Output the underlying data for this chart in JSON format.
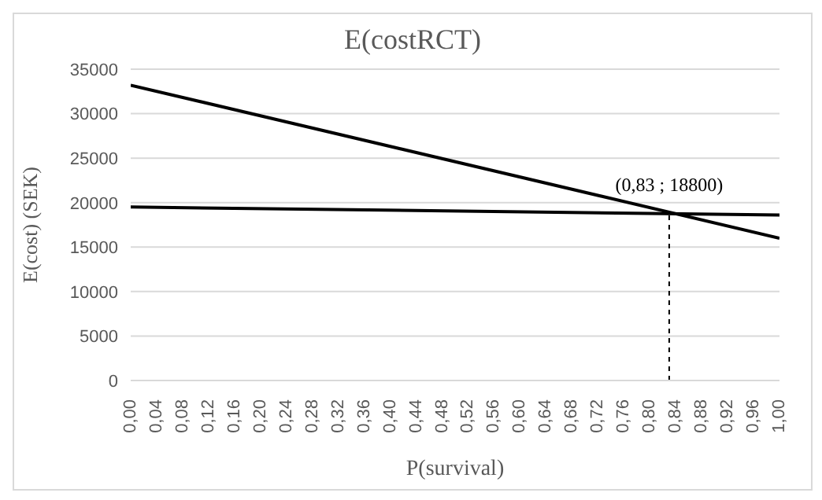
{
  "chart_data": {
    "type": "line",
    "title": "E(costRCT)",
    "xlabel": "P(survival)",
    "ylabel": "E(cost) (SEK)",
    "series": [
      {
        "color": "#000000",
        "x": [
          0,
          1
        ],
        "values": [
          33200,
          16000
        ]
      },
      {
        "color": "#000000",
        "x": [
          0,
          1
        ],
        "values": [
          19500,
          18600
        ]
      },
      {
        "color": "#000000",
        "x": [
          0.83,
          0.83
        ],
        "values": [
          0,
          18800
        ],
        "line_style": "dashed"
      }
    ],
    "xlim": [
      0,
      1
    ],
    "xticks": [
      {
        "value": 0,
        "label": "0,00"
      },
      {
        "value": 0.04,
        "label": "0,04"
      },
      {
        "value": 0.08,
        "label": "0,08"
      },
      {
        "value": 0.12,
        "label": "0,12"
      },
      {
        "value": 0.16,
        "label": "0,16"
      },
      {
        "value": 0.2,
        "label": "0,20"
      },
      {
        "value": 0.24,
        "label": "0,24"
      },
      {
        "value": 0.28,
        "label": "0,28"
      },
      {
        "value": 0.32,
        "label": "0,32"
      },
      {
        "value": 0.36,
        "label": "0,36"
      },
      {
        "value": 0.4,
        "label": "0,40"
      },
      {
        "value": 0.44,
        "label": "0,44"
      },
      {
        "value": 0.48,
        "label": "0,48"
      },
      {
        "value": 0.52,
        "label": "0,52"
      },
      {
        "value": 0.56,
        "label": "0,56"
      },
      {
        "value": 0.6,
        "label": "0,60"
      },
      {
        "value": 0.64,
        "label": "0,64"
      },
      {
        "value": 0.68,
        "label": "0,68"
      },
      {
        "value": 0.72,
        "label": "0,72"
      },
      {
        "value": 0.76,
        "label": "0,76"
      },
      {
        "value": 0.8,
        "label": "0,80"
      },
      {
        "value": 0.84,
        "label": "0,84"
      },
      {
        "value": 0.88,
        "label": "0,88"
      },
      {
        "value": 0.92,
        "label": "0,92"
      },
      {
        "value": 0.96,
        "label": "0,96"
      },
      {
        "value": 1,
        "label": "1,00"
      }
    ],
    "ylim": [
      0,
      35000
    ],
    "yticks": [
      0,
      5000,
      10000,
      15000,
      20000,
      25000,
      30000,
      35000
    ],
    "grid": "y",
    "marker": "none",
    "line_style": "solid",
    "annotations": [
      {
        "text": "(0,83 ; 18800)",
        "x": 0.83,
        "y": 18800
      }
    ]
  }
}
